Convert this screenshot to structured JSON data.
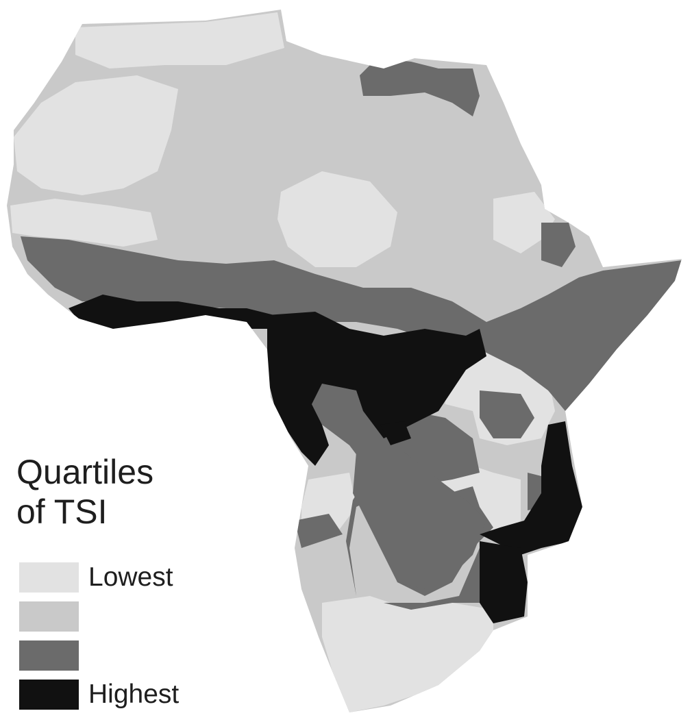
{
  "legend": {
    "title_line1": "Quartiles",
    "title_line2": "of TSI",
    "items": [
      {
        "label": "Lowest",
        "color": "#e2e2e2"
      },
      {
        "label": "",
        "color": "#c9c9c9"
      },
      {
        "label": "",
        "color": "#6b6b6b"
      },
      {
        "label": "Highest",
        "color": "#111111"
      }
    ]
  },
  "colors": {
    "background": "#ffffff",
    "q1": "#e2e2e2",
    "q2": "#c9c9c9",
    "q3": "#6b6b6b",
    "q4": "#111111"
  }
}
